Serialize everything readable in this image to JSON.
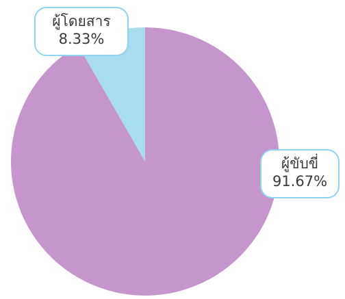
{
  "chart_data": {
    "type": "pie",
    "title": "",
    "slices": [
      {
        "label": "ผู้ขับขี่",
        "value": 91.67,
        "percent_label": "91.67%",
        "color": "#c596cb"
      },
      {
        "label": "ผู้โดยสาร",
        "value": 8.33,
        "percent_label": "8.33%",
        "color": "#a8dcef"
      }
    ],
    "legend": "none",
    "callout_border_color": "#8fd3ef"
  }
}
